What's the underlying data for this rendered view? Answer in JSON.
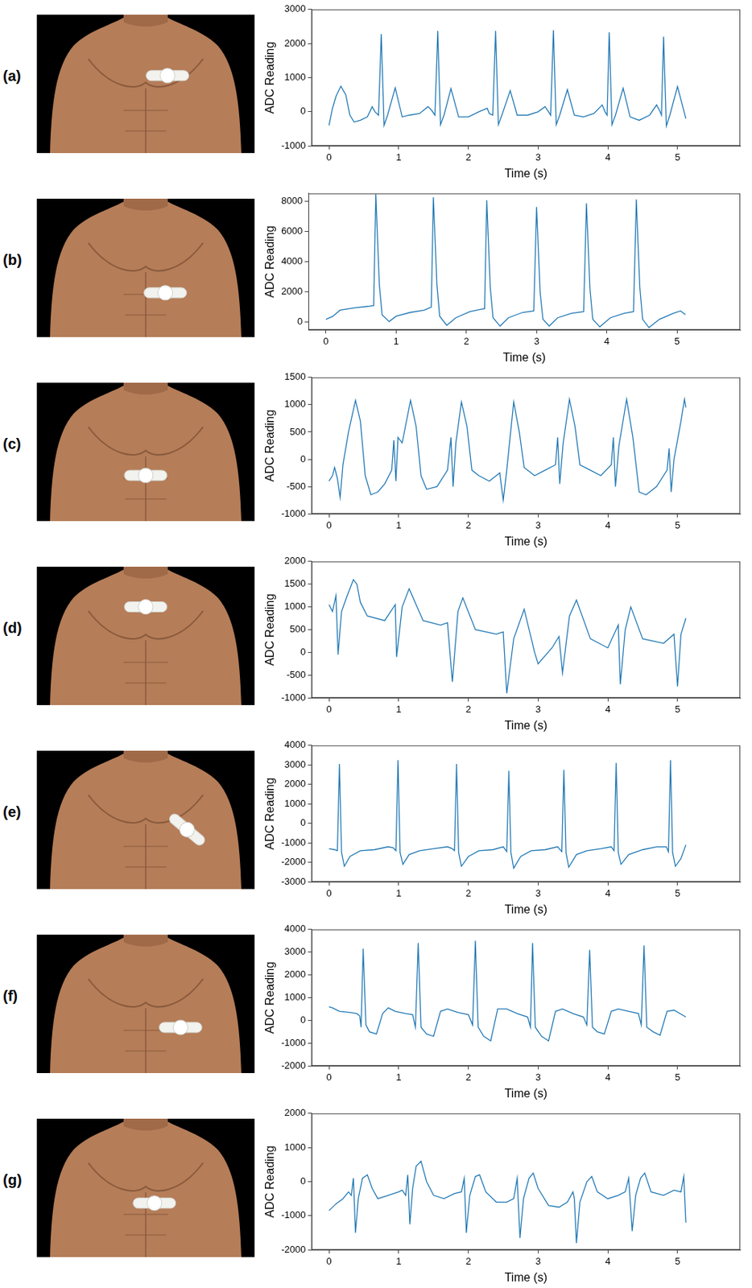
{
  "chart_data": [
    {
      "type": "line",
      "title": "(a)",
      "x_label": "Time (s)",
      "y_label": "ADC Reading",
      "color": "#1f77b4",
      "grid": false,
      "xlim": [
        -0.25,
        5.9
      ],
      "xticks": [
        0,
        1,
        2,
        3,
        4,
        5
      ],
      "ylim": [
        -1000,
        3000
      ],
      "yticks": [
        -1000,
        0,
        1000,
        2000,
        3000
      ],
      "x": [
        0,
        0.05,
        0.1,
        0.17,
        0.24,
        0.3,
        0.36,
        0.45,
        0.55,
        0.62,
        0.66,
        0.71,
        0.75,
        0.79,
        0.84,
        0.95,
        1.05,
        1.15,
        1.3,
        1.42,
        1.47,
        1.52,
        1.56,
        1.6,
        1.65,
        1.75,
        1.86,
        2.0,
        2.15,
        2.27,
        2.3,
        2.35,
        2.39,
        2.43,
        2.48,
        2.6,
        2.7,
        2.85,
        3.0,
        3.1,
        3.15,
        3.18,
        3.22,
        3.26,
        3.31,
        3.42,
        3.52,
        3.65,
        3.8,
        3.92,
        3.96,
        3.99,
        4.02,
        4.06,
        4.11,
        4.22,
        4.32,
        4.45,
        4.6,
        4.7,
        4.74,
        4.77,
        4.8,
        4.84,
        4.89,
        5.0,
        5.12
      ],
      "values": [
        -400,
        100,
        450,
        750,
        500,
        -100,
        -300,
        -250,
        -150,
        150,
        0,
        -100,
        2280,
        -400,
        -100,
        700,
        -150,
        -100,
        -50,
        150,
        50,
        -100,
        2370,
        -380,
        -100,
        680,
        -150,
        -150,
        0,
        100,
        -50,
        -100,
        2370,
        -380,
        -100,
        620,
        -100,
        -100,
        0,
        150,
        0,
        -100,
        2390,
        -380,
        -100,
        650,
        -100,
        -150,
        -50,
        200,
        0,
        -100,
        2330,
        -380,
        -100,
        690,
        -150,
        -250,
        -100,
        200,
        50,
        -100,
        2200,
        -420,
        -100,
        740,
        -200
      ]
    },
    {
      "type": "line",
      "title": "(b)",
      "x_label": "Time (s)",
      "y_label": "ADC Reading",
      "color": "#1f77b4",
      "grid": false,
      "xlim": [
        -0.25,
        5.9
      ],
      "xticks": [
        0,
        1,
        2,
        3,
        4,
        5
      ],
      "ylim": [
        -500,
        8500
      ],
      "yticks": [
        0,
        2000,
        4000,
        6000,
        8000
      ],
      "x": [
        0,
        0.1,
        0.2,
        0.4,
        0.6,
        0.68,
        0.71,
        0.76,
        0.8,
        0.9,
        1.0,
        1.2,
        1.4,
        1.5,
        1.53,
        1.58,
        1.62,
        1.72,
        1.85,
        2.05,
        2.2,
        2.26,
        2.29,
        2.34,
        2.38,
        2.48,
        2.6,
        2.8,
        2.96,
        3.0,
        3.05,
        3.09,
        3.18,
        3.3,
        3.5,
        3.67,
        3.71,
        3.76,
        3.8,
        3.9,
        4.05,
        4.25,
        4.38,
        4.42,
        4.47,
        4.51,
        4.6,
        4.75,
        4.95,
        5.05,
        5.12
      ],
      "values": [
        200,
        400,
        800,
        950,
        1050,
        1100,
        8450,
        2500,
        500,
        50,
        400,
        650,
        800,
        1000,
        8250,
        2500,
        400,
        -200,
        300,
        700,
        850,
        900,
        8050,
        2300,
        300,
        -250,
        300,
        650,
        750,
        7600,
        2000,
        200,
        -250,
        300,
        600,
        700,
        7850,
        2200,
        200,
        -300,
        300,
        600,
        700,
        8100,
        2300,
        200,
        -350,
        200,
        600,
        750,
        500
      ]
    },
    {
      "type": "line",
      "title": "(c)",
      "x_label": "Time (s)",
      "y_label": "ADC Reading",
      "color": "#1f77b4",
      "grid": false,
      "xlim": [
        -0.25,
        5.9
      ],
      "xticks": [
        0,
        1,
        2,
        3,
        4,
        5
      ],
      "ylim": [
        -1000,
        1500
      ],
      "yticks": [
        -1000,
        -500,
        0,
        500,
        1000,
        1500
      ],
      "x": [
        0,
        0.05,
        0.08,
        0.12,
        0.16,
        0.2,
        0.28,
        0.38,
        0.45,
        0.52,
        0.6,
        0.7,
        0.8,
        0.9,
        0.93,
        0.96,
        0.99,
        1.05,
        1.17,
        1.25,
        1.32,
        1.4,
        1.55,
        1.7,
        1.75,
        1.78,
        1.82,
        1.9,
        1.98,
        2.05,
        2.15,
        2.3,
        2.45,
        2.5,
        2.55,
        2.65,
        2.73,
        2.8,
        2.95,
        3.1,
        3.25,
        3.28,
        3.31,
        3.36,
        3.45,
        3.53,
        3.6,
        3.75,
        3.9,
        4.05,
        4.08,
        4.11,
        4.16,
        4.27,
        4.36,
        4.45,
        4.55,
        4.7,
        4.85,
        4.88,
        4.91,
        4.95,
        5.05,
        5.1,
        5.12
      ],
      "values": [
        -400,
        -300,
        -150,
        -350,
        -700,
        -100,
        500,
        1080,
        700,
        -300,
        -650,
        -600,
        -450,
        -200,
        350,
        -400,
        400,
        300,
        1080,
        600,
        -300,
        -550,
        -500,
        -200,
        400,
        -500,
        300,
        1050,
        600,
        -200,
        -300,
        -400,
        -250,
        -750,
        -200,
        1050,
        500,
        -150,
        -300,
        -200,
        -100,
        400,
        -450,
        300,
        1100,
        600,
        -100,
        -200,
        -300,
        -100,
        400,
        -500,
        250,
        1100,
        400,
        -600,
        -650,
        -500,
        -200,
        200,
        -600,
        0,
        700,
        1100,
        950
      ]
    },
    {
      "type": "line",
      "title": "(d)",
      "x_label": "Time (s)",
      "y_label": "ADC Reading",
      "color": "#1f77b4",
      "grid": false,
      "xlim": [
        -0.25,
        5.9
      ],
      "xticks": [
        0,
        1,
        2,
        3,
        4,
        5
      ],
      "ylim": [
        -1000,
        2000
      ],
      "yticks": [
        -1000,
        -500,
        0,
        500,
        1000,
        1500,
        2000
      ],
      "x": [
        0,
        0.05,
        0.1,
        0.13,
        0.18,
        0.25,
        0.35,
        0.4,
        0.45,
        0.55,
        0.8,
        0.95,
        0.97,
        1.05,
        1.15,
        1.35,
        1.6,
        1.7,
        1.77,
        1.85,
        1.92,
        2.1,
        2.4,
        2.5,
        2.55,
        2.65,
        2.8,
        2.95,
        3.0,
        3.2,
        3.3,
        3.35,
        3.45,
        3.55,
        3.75,
        4.0,
        4.15,
        4.18,
        4.25,
        4.33,
        4.5,
        4.8,
        4.95,
        5.0,
        5.05,
        5.12
      ],
      "values": [
        1050,
        900,
        1250,
        -50,
        900,
        1200,
        1600,
        1500,
        1100,
        800,
        700,
        1050,
        -100,
        1000,
        1400,
        700,
        600,
        650,
        -650,
        900,
        1200,
        500,
        400,
        450,
        -900,
        300,
        950,
        0,
        -250,
        100,
        350,
        -450,
        800,
        1150,
        300,
        100,
        600,
        -700,
        500,
        1000,
        300,
        200,
        400,
        -750,
        400,
        750
      ]
    },
    {
      "type": "line",
      "title": "(e)",
      "x_label": "Time (s)",
      "y_label": "ADC Reading",
      "color": "#1f77b4",
      "grid": false,
      "xlim": [
        -0.25,
        5.9
      ],
      "xticks": [
        0,
        1,
        2,
        3,
        4,
        5
      ],
      "ylim": [
        -3000,
        4000
      ],
      "yticks": [
        -3000,
        -2000,
        -1000,
        0,
        1000,
        2000,
        3000,
        4000
      ],
      "x": [
        0,
        0.08,
        0.12,
        0.15,
        0.18,
        0.22,
        0.3,
        0.45,
        0.65,
        0.85,
        0.92,
        0.96,
        0.99,
        1.02,
        1.06,
        1.15,
        1.3,
        1.5,
        1.7,
        1.77,
        1.8,
        1.83,
        1.86,
        1.9,
        2.0,
        2.15,
        2.35,
        2.5,
        2.55,
        2.58,
        2.61,
        2.65,
        2.75,
        2.9,
        3.1,
        3.28,
        3.34,
        3.37,
        3.4,
        3.44,
        3.55,
        3.7,
        3.9,
        4.05,
        4.09,
        4.12,
        4.15,
        4.19,
        4.3,
        4.5,
        4.7,
        4.84,
        4.87,
        4.9,
        4.93,
        4.97,
        5.05,
        5.12
      ],
      "values": [
        -1300,
        -1350,
        -1400,
        3050,
        -1500,
        -2200,
        -1700,
        -1400,
        -1350,
        -1200,
        -1250,
        -1400,
        3250,
        -1500,
        -2100,
        -1600,
        -1400,
        -1300,
        -1200,
        -1300,
        -1400,
        3050,
        -1500,
        -2200,
        -1700,
        -1400,
        -1350,
        -1200,
        -1450,
        2700,
        -1500,
        -2300,
        -1700,
        -1400,
        -1350,
        -1200,
        -1450,
        2750,
        -1500,
        -2250,
        -1600,
        -1400,
        -1300,
        -1200,
        -1400,
        3100,
        -1500,
        -2100,
        -1600,
        -1350,
        -1200,
        -1200,
        -1450,
        3250,
        -1500,
        -2200,
        -1800,
        -1100
      ]
    },
    {
      "type": "line",
      "title": "(f)",
      "x_label": "Time (s)",
      "y_label": "ADC Reading",
      "color": "#1f77b4",
      "grid": false,
      "xlim": [
        -0.25,
        5.9
      ],
      "xticks": [
        0,
        1,
        2,
        3,
        4,
        5
      ],
      "ylim": [
        -2000,
        4000
      ],
      "yticks": [
        -2000,
        -1000,
        0,
        1000,
        2000,
        3000,
        4000
      ],
      "x": [
        0,
        0.05,
        0.15,
        0.3,
        0.4,
        0.44,
        0.46,
        0.49,
        0.53,
        0.58,
        0.68,
        0.77,
        0.85,
        0.95,
        1.1,
        1.2,
        1.24,
        1.28,
        1.32,
        1.4,
        1.5,
        1.6,
        1.7,
        1.85,
        2.0,
        2.06,
        2.1,
        2.14,
        2.22,
        2.32,
        2.42,
        2.55,
        2.7,
        2.85,
        2.89,
        2.92,
        2.96,
        3.05,
        3.15,
        3.25,
        3.35,
        3.5,
        3.65,
        3.7,
        3.74,
        3.78,
        3.85,
        3.95,
        4.05,
        4.15,
        4.3,
        4.44,
        4.48,
        4.52,
        4.56,
        4.65,
        4.75,
        4.85,
        4.95,
        5.12
      ],
      "values": [
        600,
        550,
        400,
        350,
        300,
        200,
        -300,
        3150,
        -200,
        -500,
        -600,
        300,
        550,
        400,
        300,
        250,
        -300,
        3400,
        -300,
        -600,
        -700,
        400,
        500,
        350,
        250,
        -200,
        3500,
        -300,
        -700,
        -900,
        500,
        500,
        300,
        150,
        -300,
        3400,
        -300,
        -700,
        -900,
        400,
        500,
        300,
        150,
        -200,
        3100,
        -300,
        -500,
        -600,
        400,
        500,
        400,
        300,
        -200,
        3300,
        -300,
        -500,
        -650,
        400,
        450,
        150
      ]
    },
    {
      "type": "line",
      "title": "(g)",
      "x_label": "Time (s)",
      "y_label": "ADC Reading",
      "color": "#1f77b4",
      "grid": false,
      "xlim": [
        -0.25,
        5.9
      ],
      "xticks": [
        0,
        1,
        2,
        3,
        4,
        5
      ],
      "ylim": [
        -2000,
        2000
      ],
      "yticks": [
        -2000,
        -1000,
        0,
        1000,
        2000
      ],
      "x": [
        0,
        0.1,
        0.2,
        0.28,
        0.32,
        0.35,
        0.38,
        0.42,
        0.48,
        0.55,
        0.62,
        0.7,
        0.85,
        1.0,
        1.05,
        1.1,
        1.13,
        1.16,
        1.2,
        1.25,
        1.32,
        1.4,
        1.5,
        1.65,
        1.8,
        1.9,
        1.94,
        1.97,
        2.02,
        2.1,
        2.16,
        2.25,
        2.4,
        2.55,
        2.65,
        2.7,
        2.74,
        2.79,
        2.87,
        2.93,
        3.0,
        3.15,
        3.3,
        3.42,
        3.5,
        3.52,
        3.55,
        3.6,
        3.7,
        3.77,
        3.85,
        4.0,
        4.15,
        4.25,
        4.3,
        4.35,
        4.4,
        4.47,
        4.53,
        4.62,
        4.8,
        4.95,
        5.05,
        5.09,
        5.12
      ],
      "values": [
        -850,
        -650,
        -500,
        -300,
        -400,
        100,
        -1500,
        -500,
        100,
        200,
        -200,
        -500,
        -400,
        -300,
        -250,
        -400,
        200,
        -1250,
        -200,
        450,
        600,
        0,
        -400,
        -500,
        -350,
        -300,
        100,
        -1500,
        -400,
        150,
        200,
        -300,
        -600,
        -600,
        -500,
        100,
        -1650,
        -500,
        100,
        250,
        -200,
        -700,
        -750,
        -600,
        -300,
        -500,
        -1800,
        -600,
        0,
        150,
        -300,
        -500,
        -400,
        -300,
        100,
        -1450,
        -400,
        100,
        250,
        -300,
        -400,
        -250,
        -300,
        150,
        -1200
      ]
    }
  ]
}
